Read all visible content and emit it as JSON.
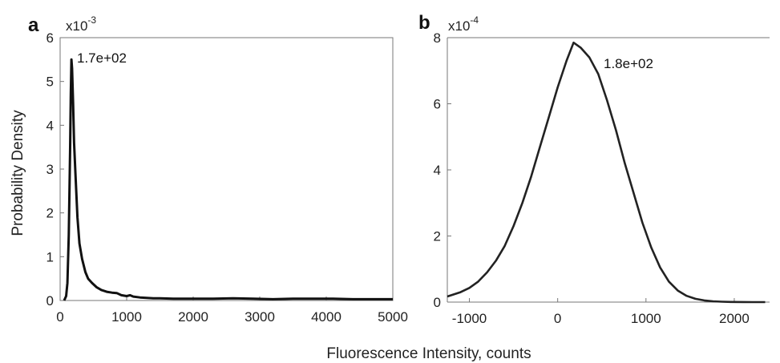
{
  "figure": {
    "xlabel": "Fluorescence Intensity, counts",
    "ylabel": "Probability Density"
  },
  "chart_data": [
    {
      "panel": "a",
      "type": "line",
      "y_multiplier": "x10",
      "y_exponent": "-3",
      "xlim": [
        0,
        5000
      ],
      "ylim": [
        0,
        6
      ],
      "xticks": [
        0,
        1000,
        2000,
        3000,
        4000,
        5000
      ],
      "yticks": [
        0,
        1,
        2,
        3,
        4,
        5,
        6
      ],
      "grid": false,
      "annotation": "1.7e+02",
      "series": [
        {
          "x": [
            60,
            90,
            110,
            130,
            150,
            160,
            170,
            180,
            195,
            210,
            230,
            260,
            290,
            330,
            380,
            420,
            480,
            550,
            620,
            700,
            780,
            850,
            920,
            1000,
            1050,
            1100,
            1200,
            1300,
            1400,
            1500,
            1700,
            2000,
            2300,
            2600,
            2900,
            3200,
            3500,
            3800,
            4100,
            4400,
            4700,
            5000
          ],
          "y": [
            0.0,
            0.1,
            0.4,
            1.5,
            3.5,
            4.7,
            5.5,
            5.3,
            4.5,
            3.6,
            2.9,
            1.9,
            1.3,
            0.95,
            0.65,
            0.5,
            0.4,
            0.3,
            0.24,
            0.2,
            0.18,
            0.17,
            0.12,
            0.1,
            0.12,
            0.09,
            0.07,
            0.06,
            0.05,
            0.05,
            0.04,
            0.04,
            0.04,
            0.05,
            0.04,
            0.03,
            0.04,
            0.04,
            0.04,
            0.03,
            0.03,
            0.03
          ]
        }
      ]
    },
    {
      "panel": "b",
      "type": "line",
      "y_multiplier": "x10",
      "y_exponent": "-4",
      "xlim": [
        -1250,
        2400
      ],
      "ylim": [
        0,
        8
      ],
      "xticks": [
        -1000,
        0,
        1000,
        2000
      ],
      "yticks": [
        0,
        2,
        4,
        6,
        8
      ],
      "grid": false,
      "annotation": "1.8e+02",
      "series": [
        {
          "x": [
            -1250,
            -1100,
            -1000,
            -900,
            -800,
            -700,
            -600,
            -500,
            -400,
            -300,
            -200,
            -100,
            0,
            100,
            180,
            260,
            360,
            460,
            560,
            660,
            760,
            860,
            960,
            1060,
            1160,
            1260,
            1360,
            1460,
            1560,
            1660,
            1760,
            1860,
            1960,
            2100,
            2200,
            2350
          ],
          "y": [
            0.17,
            0.3,
            0.43,
            0.62,
            0.9,
            1.25,
            1.7,
            2.3,
            3.0,
            3.8,
            4.7,
            5.6,
            6.5,
            7.3,
            7.85,
            7.7,
            7.4,
            6.9,
            6.1,
            5.2,
            4.2,
            3.3,
            2.4,
            1.65,
            1.05,
            0.62,
            0.35,
            0.19,
            0.1,
            0.05,
            0.025,
            0.012,
            0.006,
            0.002,
            0.001,
            0.0
          ]
        }
      ]
    }
  ]
}
